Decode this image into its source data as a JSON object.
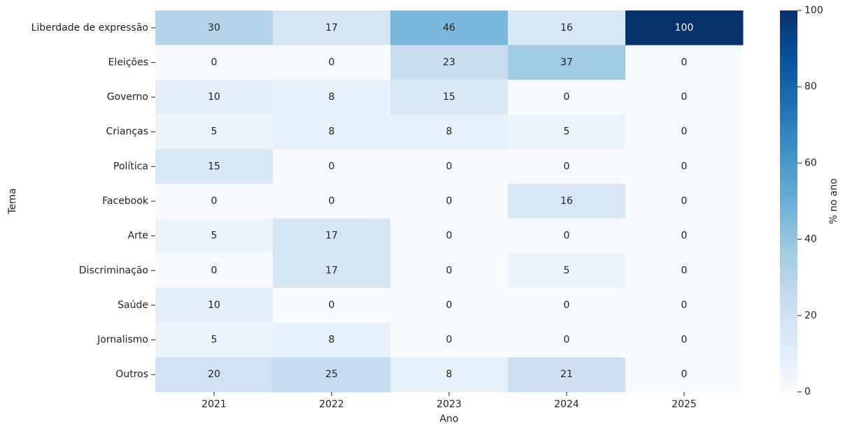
{
  "chart_data": {
    "type": "heatmap",
    "x_categories": [
      "2021",
      "2022",
      "2023",
      "2024",
      "2025"
    ],
    "y_categories": [
      "Liberdade de expressão",
      "Eleições",
      "Governo",
      "Crianças",
      "Política",
      "Facebook",
      "Arte",
      "Discriminação",
      "Saúde",
      "Jornalismo",
      "Outros"
    ],
    "values": [
      [
        30,
        17,
        46,
        16,
        100
      ],
      [
        0,
        0,
        23,
        37,
        0
      ],
      [
        10,
        8,
        15,
        0,
        0
      ],
      [
        5,
        8,
        8,
        5,
        0
      ],
      [
        15,
        0,
        0,
        0,
        0
      ],
      [
        0,
        0,
        0,
        16,
        0
      ],
      [
        5,
        17,
        0,
        0,
        0
      ],
      [
        0,
        17,
        0,
        5,
        0
      ],
      [
        10,
        0,
        0,
        0,
        0
      ],
      [
        5,
        8,
        0,
        0,
        0
      ],
      [
        20,
        25,
        8,
        21,
        0
      ]
    ],
    "xlabel": "Ano",
    "ylabel": "Tema",
    "colorbar_label": "% no ano",
    "colormap": "Blues",
    "clim": [
      0,
      100
    ],
    "cticks": [
      0,
      20,
      40,
      60,
      80,
      100
    ]
  }
}
